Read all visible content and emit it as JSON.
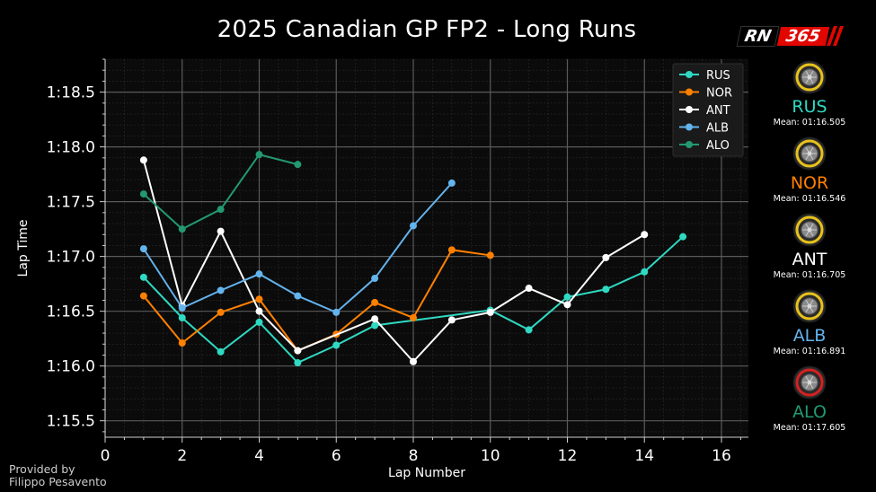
{
  "title": "2025 Canadian GP FP2 - Long Runs",
  "logo": {
    "rn": "RN",
    "num": "365"
  },
  "credit": {
    "line1": "Provided by",
    "line2": "Filippo Pesavento"
  },
  "drivers": [
    {
      "code": "RUS",
      "color": "#2fd9c2",
      "tyre": "medium",
      "mean_label": "Mean: 01:16.505"
    },
    {
      "code": "NOR",
      "color": "#ff8000",
      "tyre": "medium",
      "mean_label": "Mean: 01:16.546"
    },
    {
      "code": "ANT",
      "color": "#ffffff",
      "tyre": "medium",
      "mean_label": "Mean: 01:16.705"
    },
    {
      "code": "ALB",
      "color": "#63b3ed",
      "tyre": "medium",
      "mean_label": "Mean: 01:16.891"
    },
    {
      "code": "ALO",
      "color": "#229971",
      "tyre": "soft",
      "mean_label": "Mean: 01:17.605"
    }
  ],
  "chart_data": {
    "type": "line",
    "title": "2025 Canadian GP FP2 - Long Runs",
    "xlabel": "Lap Number",
    "ylabel": "Lap Time",
    "xlim": [
      0,
      16.7
    ],
    "ylim": [
      75.35,
      78.8
    ],
    "xticks": [
      0,
      2,
      4,
      6,
      8,
      10,
      12,
      14,
      16
    ],
    "yticks": [
      75.5,
      76.0,
      76.5,
      77.0,
      77.5,
      78.0,
      78.5
    ],
    "ytick_labels": [
      "1:15.5",
      "1:16.0",
      "1:16.5",
      "1:17.0",
      "1:17.5",
      "1:18.0",
      "1:18.5"
    ],
    "grid": true,
    "legend_position": "top-right",
    "series": [
      {
        "name": "RUS",
        "color": "#2fd9c2",
        "x": [
          1,
          2,
          3,
          4,
          5,
          6,
          7,
          10,
          11,
          12,
          13,
          14,
          15
        ],
        "values": [
          76.81,
          76.44,
          76.13,
          76.4,
          76.03,
          76.19,
          76.37,
          76.51,
          76.33,
          76.63,
          76.7,
          76.86,
          77.18
        ]
      },
      {
        "name": "NOR",
        "color": "#ff8000",
        "x": [
          1,
          2,
          3,
          4,
          5,
          6,
          7,
          8,
          9,
          10
        ],
        "values": [
          76.64,
          76.21,
          76.49,
          76.61,
          76.14,
          76.29,
          76.58,
          76.44,
          77.06,
          77.01
        ]
      },
      {
        "name": "ANT",
        "color": "#ffffff",
        "x": [
          1,
          2,
          3,
          4,
          5,
          7,
          8,
          9,
          10,
          11,
          12,
          13,
          14
        ],
        "values": [
          77.88,
          76.55,
          77.23,
          76.5,
          76.14,
          76.43,
          76.04,
          76.42,
          76.49,
          76.71,
          76.56,
          76.99,
          77.2
        ]
      },
      {
        "name": "ALB",
        "color": "#63b3ed",
        "x": [
          1,
          2,
          3,
          4,
          5,
          6,
          7,
          8,
          9
        ],
        "values": [
          77.07,
          76.53,
          76.69,
          76.84,
          76.64,
          76.49,
          76.8,
          77.28,
          77.67
        ]
      },
      {
        "name": "ALO",
        "color": "#229971",
        "x": [
          1,
          2,
          3,
          4,
          5
        ],
        "values": [
          77.57,
          77.25,
          77.43,
          77.93,
          77.84
        ]
      }
    ]
  }
}
